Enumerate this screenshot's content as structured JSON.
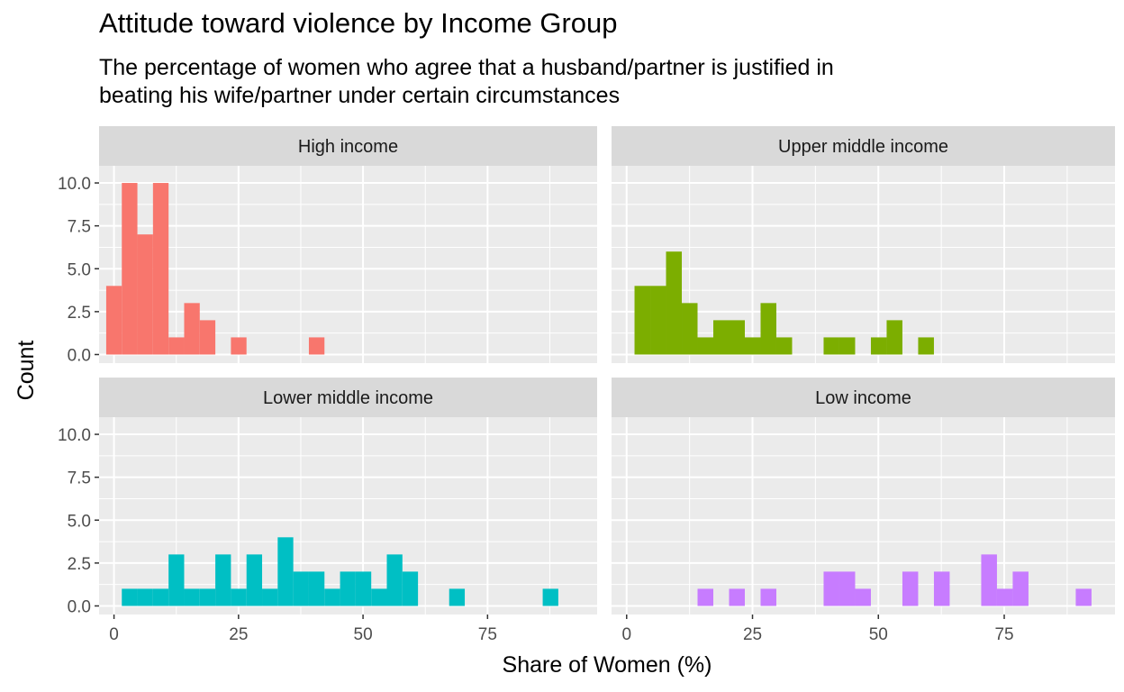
{
  "header": {
    "title": "Attitude toward violence by Income Group",
    "subtitle_lines": [
      "The percentage of women who agree that a husband/partner is justified in",
      "beating his wife/partner under certain circumstances"
    ]
  },
  "chart_data": {
    "type": "bar",
    "subtype": "faceted-histogram",
    "xlabel": "Share of Women (%)",
    "ylabel": "Count",
    "xlim": [
      -3,
      97
    ],
    "ylim": [
      -0.5,
      11
    ],
    "x_ticks": [
      0,
      25,
      50,
      75
    ],
    "x_tick_labels": [
      "0",
      "25",
      "50",
      "75"
    ],
    "y_ticks": [
      0,
      2.5,
      5,
      7.5,
      10
    ],
    "y_tick_labels": [
      "0.0",
      "2.5",
      "5.0",
      "7.5",
      "10.0"
    ],
    "bin_width": 3.13,
    "grid": true,
    "legend": "none",
    "panels": [
      {
        "label": "High income",
        "color": "#F8766D",
        "bins": [
          {
            "x": 0,
            "count": 4
          },
          {
            "x": 3.13,
            "count": 10
          },
          {
            "x": 6.26,
            "count": 7
          },
          {
            "x": 9.39,
            "count": 10
          },
          {
            "x": 12.52,
            "count": 1
          },
          {
            "x": 15.65,
            "count": 3
          },
          {
            "x": 18.78,
            "count": 2
          },
          {
            "x": 25.04,
            "count": 1
          },
          {
            "x": 40.69,
            "count": 1
          }
        ]
      },
      {
        "label": "Upper middle income",
        "color": "#7CAE00",
        "bins": [
          {
            "x": 3.13,
            "count": 4
          },
          {
            "x": 6.26,
            "count": 4
          },
          {
            "x": 9.39,
            "count": 6
          },
          {
            "x": 12.52,
            "count": 3
          },
          {
            "x": 15.65,
            "count": 1
          },
          {
            "x": 18.78,
            "count": 2
          },
          {
            "x": 21.91,
            "count": 2
          },
          {
            "x": 25.04,
            "count": 1
          },
          {
            "x": 28.17,
            "count": 3
          },
          {
            "x": 31.3,
            "count": 1
          },
          {
            "x": 40.69,
            "count": 1
          },
          {
            "x": 43.82,
            "count": 1
          },
          {
            "x": 50.08,
            "count": 1
          },
          {
            "x": 53.21,
            "count": 2
          },
          {
            "x": 59.47,
            "count": 1
          }
        ]
      },
      {
        "label": "Lower middle income",
        "color": "#00BFC4",
        "bins": [
          {
            "x": 3.13,
            "count": 1
          },
          {
            "x": 6.26,
            "count": 1
          },
          {
            "x": 9.39,
            "count": 1
          },
          {
            "x": 12.52,
            "count": 3
          },
          {
            "x": 15.65,
            "count": 1
          },
          {
            "x": 18.78,
            "count": 1
          },
          {
            "x": 21.91,
            "count": 3
          },
          {
            "x": 25.04,
            "count": 1
          },
          {
            "x": 28.17,
            "count": 3
          },
          {
            "x": 31.3,
            "count": 1
          },
          {
            "x": 34.43,
            "count": 4
          },
          {
            "x": 37.56,
            "count": 2
          },
          {
            "x": 40.69,
            "count": 2
          },
          {
            "x": 43.82,
            "count": 1
          },
          {
            "x": 46.95,
            "count": 2
          },
          {
            "x": 50.08,
            "count": 2
          },
          {
            "x": 53.21,
            "count": 1
          },
          {
            "x": 56.34,
            "count": 3
          },
          {
            "x": 59.47,
            "count": 2
          },
          {
            "x": 68.86,
            "count": 1
          },
          {
            "x": 87.64,
            "count": 1
          }
        ]
      },
      {
        "label": "Low income",
        "color": "#C77CFF",
        "bins": [
          {
            "x": 15.65,
            "count": 1
          },
          {
            "x": 21.91,
            "count": 1
          },
          {
            "x": 28.17,
            "count": 1
          },
          {
            "x": 40.69,
            "count": 2
          },
          {
            "x": 43.82,
            "count": 2
          },
          {
            "x": 46.95,
            "count": 1
          },
          {
            "x": 56.34,
            "count": 2
          },
          {
            "x": 62.6,
            "count": 2
          },
          {
            "x": 71.99,
            "count": 3
          },
          {
            "x": 75.12,
            "count": 1
          },
          {
            "x": 78.25,
            "count": 2
          },
          {
            "x": 90.77,
            "count": 1
          }
        ]
      }
    ]
  }
}
